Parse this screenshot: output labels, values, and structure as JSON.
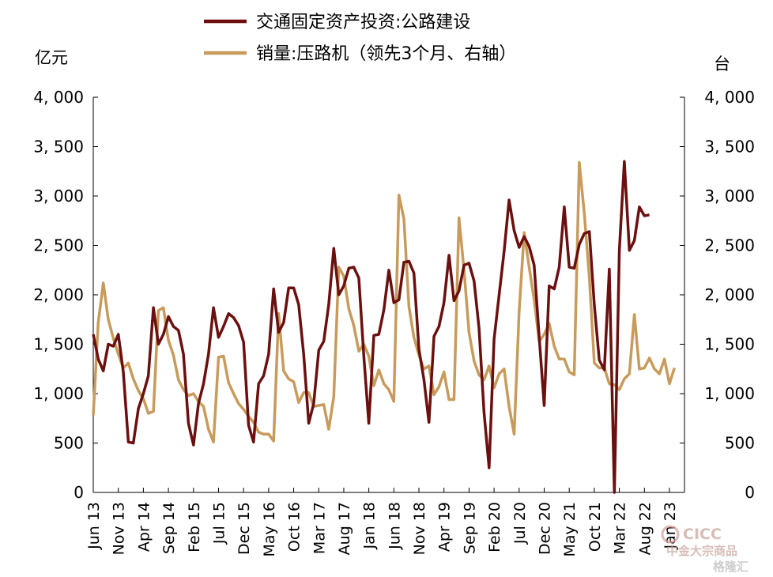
{
  "chart_data": {
    "type": "line",
    "left_unit": "亿元",
    "right_unit": "台",
    "left_ylim": [
      0,
      4000
    ],
    "right_ylim": [
      0,
      4000
    ],
    "y_ticks": [
      "0",
      "500",
      "1, 000",
      "1, 500",
      "2, 000",
      "2, 500",
      "3, 000",
      "3, 500",
      "4, 000"
    ],
    "x_ticks": [
      "Jun 13",
      "Nov 13",
      "Apr 14",
      "Sep 14",
      "Feb 15",
      "Jul 15",
      "Dec 15",
      "May 16",
      "Oct 16",
      "Mar 17",
      "Aug 17",
      "Jan 18",
      "Jun 18",
      "Nov 18",
      "Apr 19",
      "Sep 19",
      "Feb 20",
      "Jul 20",
      "Dec 20",
      "May 21",
      "Oct 21",
      "Mar 22",
      "Aug 22",
      "Jan 23"
    ],
    "x_start": "2013-06",
    "legend_position": "top-center",
    "series": [
      {
        "name": "交通固定资产投资:公路建设",
        "axis": "left",
        "color": "#6b0f0f",
        "values": [
          1600,
          1350,
          1230,
          1500,
          1480,
          1600,
          1220,
          510,
          500,
          850,
          1000,
          1180,
          1870,
          1500,
          1600,
          1780,
          1680,
          1640,
          1400,
          700,
          480,
          900,
          1100,
          1400,
          1870,
          1570,
          1680,
          1810,
          1770,
          1690,
          1520,
          680,
          510,
          1100,
          1180,
          1400,
          2060,
          1620,
          1720,
          2070,
          2070,
          1900,
          1400,
          700,
          900,
          1440,
          1530,
          1900,
          2470,
          2000,
          2090,
          2270,
          2280,
          2170,
          1380,
          700,
          1590,
          1600,
          1850,
          2250,
          1920,
          1950,
          2330,
          2340,
          2220,
          1450,
          1140,
          710,
          1580,
          1680,
          1920,
          2400,
          1940,
          2040,
          2300,
          2320,
          2140,
          1660,
          810,
          250,
          1550,
          2000,
          2440,
          2960,
          2650,
          2480,
          2590,
          2490,
          2300,
          1570,
          880,
          2090,
          2060,
          2280,
          2890,
          2280,
          2270,
          2510,
          2620,
          2640,
          1900,
          1340,
          1240,
          2260,
          0,
          2450,
          3350,
          2450,
          2550,
          2890,
          2800,
          2810
        ]
      },
      {
        "name": "销量:压路机（领先3个月、右轴）",
        "axis": "right",
        "color": "#c89b5c",
        "values": [
          780,
          1720,
          2120,
          1750,
          1560,
          1400,
          1260,
          1310,
          1150,
          1030,
          950,
          800,
          820,
          1840,
          1870,
          1540,
          1390,
          1140,
          1040,
          980,
          1000,
          920,
          870,
          640,
          510,
          1370,
          1380,
          1110,
          1000,
          900,
          840,
          770,
          710,
          610,
          590,
          590,
          520,
          1810,
          1230,
          1150,
          1120,
          910,
          1010,
          1010,
          870,
          880,
          890,
          640,
          970,
          2280,
          2190,
          1860,
          1690,
          1430,
          1500,
          1380,
          1080,
          1240,
          1100,
          1040,
          920,
          3010,
          2770,
          1880,
          1570,
          1390,
          1250,
          1280,
          990,
          1070,
          1220,
          940,
          940,
          2780,
          2250,
          1620,
          1330,
          1190,
          1140,
          1280,
          1060,
          1200,
          1250,
          870,
          590,
          1830,
          2630,
          2280,
          1950,
          1530,
          1600,
          1710,
          1480,
          1350,
          1350,
          1220,
          1190,
          3340,
          2830,
          2180,
          1310,
          1260,
          1260,
          1100,
          1090,
          1040,
          1150,
          1200,
          1800,
          1250,
          1260,
          1360,
          1250,
          1200,
          1350,
          1100,
          1260
        ]
      }
    ]
  },
  "watermark": {
    "brand": "CICC",
    "brand_sub": "中金大宗商品",
    "site": "格隆汇"
  }
}
